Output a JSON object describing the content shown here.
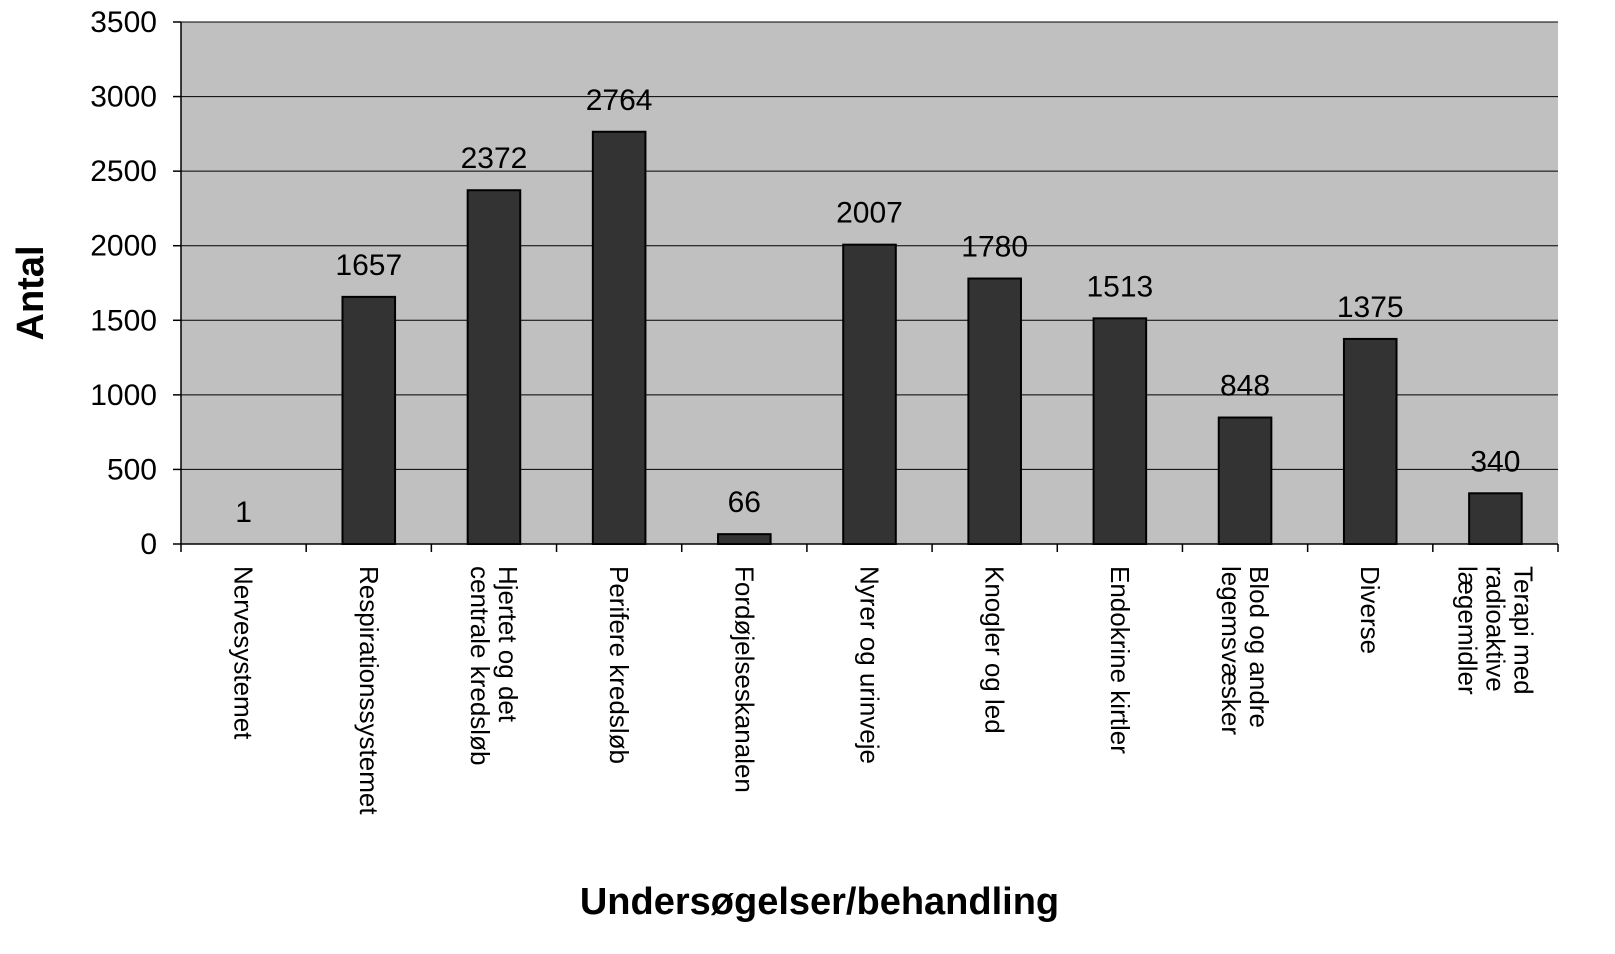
{
  "chart_data": {
    "type": "bar",
    "categories": [
      [
        "Nervesystemet"
      ],
      [
        "Respirationssystemet"
      ],
      [
        "Hjertet og det",
        "centrale kredsløb"
      ],
      [
        "Perifere kredsløb"
      ],
      [
        "Fordøjelseskanalen"
      ],
      [
        "Nyrer og urinveje"
      ],
      [
        "Knogler og led"
      ],
      [
        "Endokrine kirtler"
      ],
      [
        "Blod og andre",
        "legemsvæsker"
      ],
      [
        "Diverse"
      ],
      [
        "Terapi med",
        "radioaktive",
        "lægemidler"
      ]
    ],
    "values": [
      1,
      1657,
      2372,
      2764,
      66,
      2007,
      1780,
      1513,
      848,
      1375,
      340
    ],
    "data_labels": [
      "1",
      "1657",
      "2372",
      "2764",
      "66",
      "2007",
      "1780",
      "1513",
      "848",
      "1375",
      "340"
    ],
    "xlabel": "Undersøgelser/behandling",
    "ylabel": "Antal",
    "ylim": [
      0,
      3500
    ],
    "yticks": [
      "0",
      "500",
      "1000",
      "1500",
      "2000",
      "2500",
      "3000",
      "3500"
    ],
    "ytick_values": [
      0,
      500,
      1000,
      1500,
      2000,
      2500,
      3000,
      3500
    ],
    "grid": true,
    "legend": "none",
    "colors": {
      "plot_background": "#c0c0c0",
      "bar_fill": "#333333",
      "bar_stroke": "#000000",
      "gridline": "#000000"
    }
  }
}
